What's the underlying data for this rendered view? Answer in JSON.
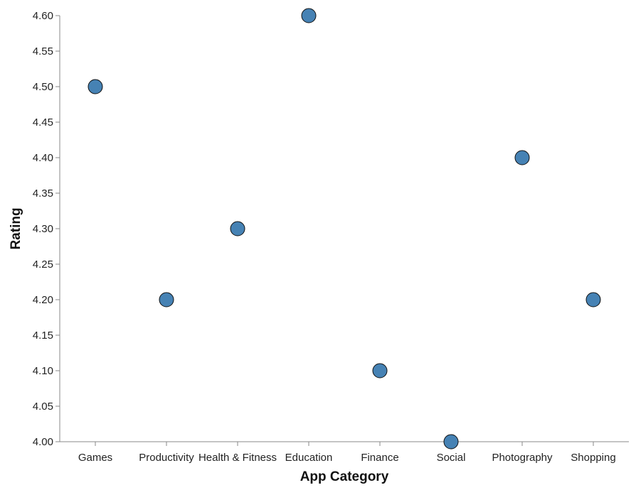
{
  "chart_data": {
    "type": "scatter",
    "title": "",
    "xlabel": "App Category",
    "ylabel": "Rating",
    "categories": [
      "Games",
      "Productivity",
      "Health & Fitness",
      "Education",
      "Finance",
      "Social",
      "Photography",
      "Shopping"
    ],
    "values": [
      4.5,
      4.2,
      4.3,
      4.6,
      4.1,
      4.0,
      4.4,
      4.2
    ],
    "ylim": [
      4.0,
      4.6
    ],
    "yticks": [
      "4.00",
      "4.05",
      "4.10",
      "4.15",
      "4.20",
      "4.25",
      "4.30",
      "4.35",
      "4.40",
      "4.45",
      "4.50",
      "4.55",
      "4.60"
    ],
    "grid": false,
    "legend": "none",
    "point_color": "#4682b4"
  }
}
